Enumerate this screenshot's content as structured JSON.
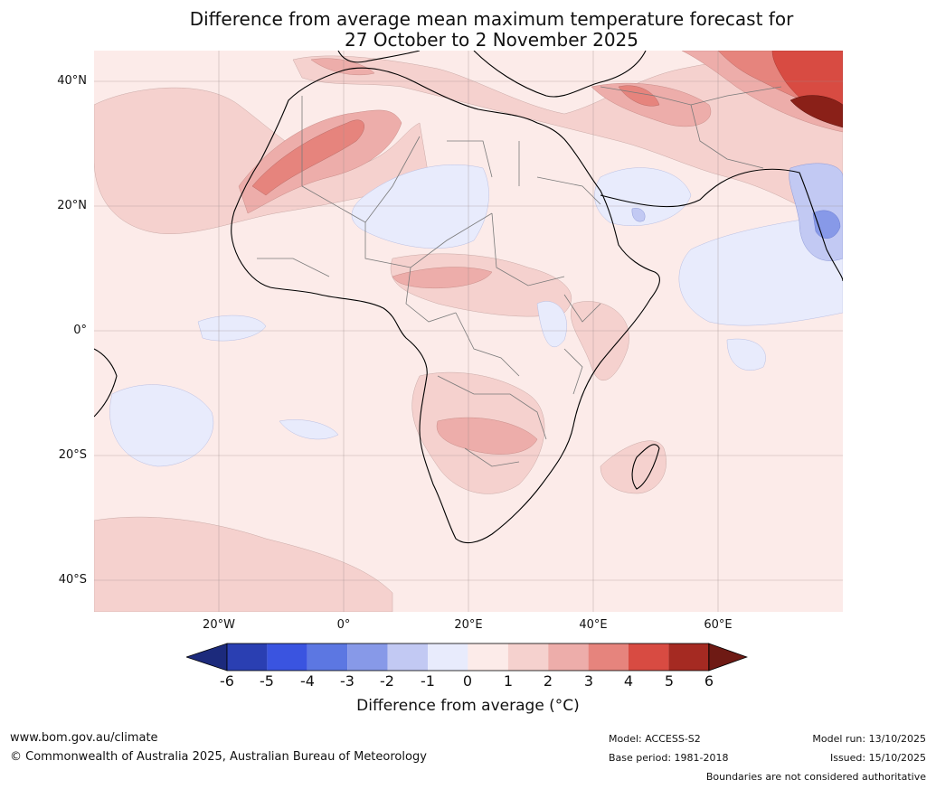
{
  "title_line1": "Difference from average mean maximum temperature forecast for",
  "title_line2": "27 October to 2 November 2025",
  "map": {
    "region": "Africa",
    "graticule": {
      "lat_labels": [
        "40°N",
        "20°N",
        "0°",
        "20°S",
        "40°S"
      ],
      "lon_labels": [
        "20°W",
        "0°",
        "20°E",
        "40°E",
        "60°E"
      ]
    }
  },
  "colorbar": {
    "ticks": [
      "-6",
      "-5",
      "-4",
      "-3",
      "-2",
      "-1",
      "0",
      "1",
      "2",
      "3",
      "4",
      "5",
      "6"
    ],
    "colors": [
      "#1c2a7c",
      "#2a3fb2",
      "#3a54e0",
      "#5c77e2",
      "#8799e8",
      "#c2c9f3",
      "#e8ebfc",
      "#fcebe9",
      "#f5d1ce",
      "#edadaa",
      "#e6847d",
      "#d84b42",
      "#a52a22",
      "#6e1a14"
    ],
    "label": "Difference from average ($^\\circ$C)",
    "label_display": "Difference from average (°C)"
  },
  "footer": {
    "website": "www.bom.gov.au/climate",
    "copyright": "© Commonwealth of Australia 2025, Australian Bureau of Meteorology",
    "model": "Model: ACCESS-S2",
    "base_period": "Base period: 1981-2018",
    "model_run": "Model run: 13/10/2025",
    "issued": "Issued: 15/10/2025",
    "disclaimer": "Boundaries are not considered authoritative"
  }
}
